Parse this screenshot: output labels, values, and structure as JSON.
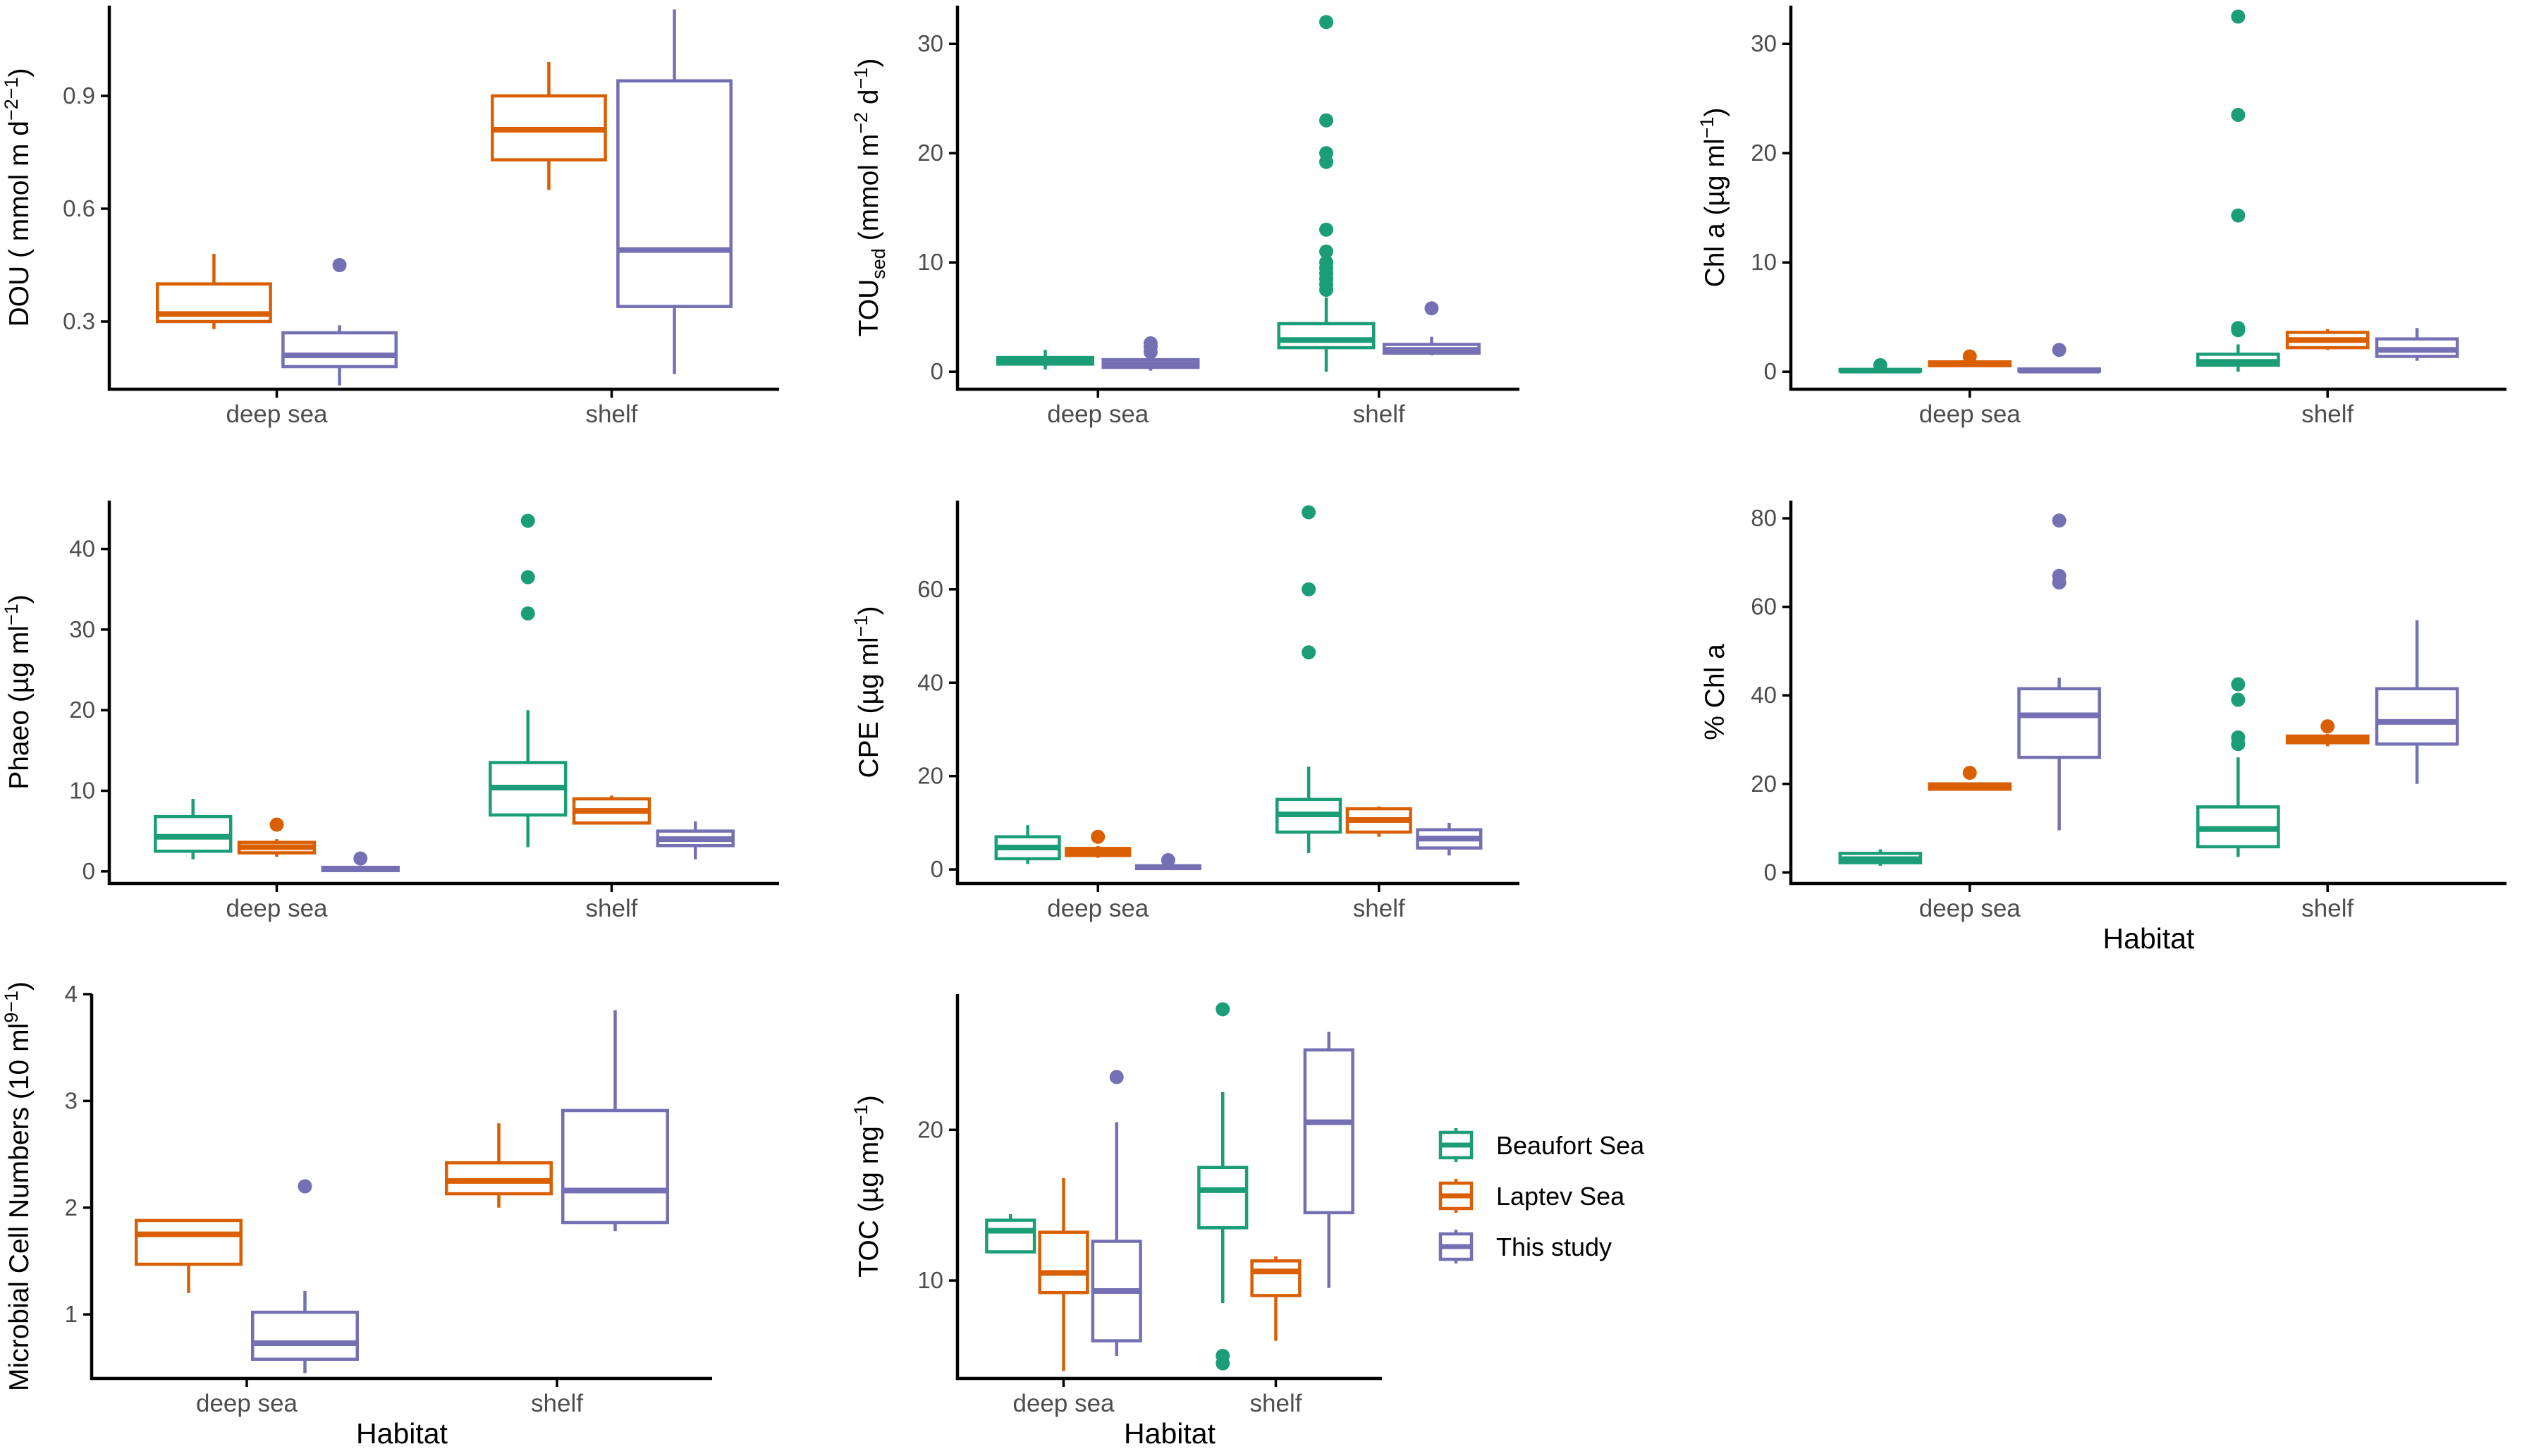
{
  "colors": {
    "Beaufort Sea": "#1b9e77",
    "Laptev Sea": "#d95f02",
    "This study": "#7570b3"
  },
  "legend": {
    "items": [
      "Beaufort Sea",
      "Laptev Sea",
      "This study"
    ]
  },
  "chart_data": [
    {
      "type": "boxplot",
      "title": "",
      "xlabel": "",
      "ylabel": {
        "main": "DOU ( mmol m",
        "sup1": "−2",
        "mid": " d",
        "sup2": "−1",
        "end": ")"
      },
      "categories": [
        "deep sea",
        "shelf"
      ],
      "ylim": [
        0.12,
        1.14
      ],
      "yticks": [
        {
          "v": 0.3,
          "label": "0.3"
        },
        {
          "v": 0.6,
          "label": "0.6"
        },
        {
          "v": 0.9,
          "label": "0.9"
        }
      ],
      "series": [
        {
          "name": "Laptev Sea",
          "values": [
            {
              "category": "deep sea",
              "min": 0.28,
              "q1": 0.3,
              "median": 0.32,
              "q3": 0.4,
              "max": 0.48,
              "outliers": []
            },
            {
              "category": "shelf",
              "min": 0.65,
              "q1": 0.73,
              "median": 0.81,
              "q3": 0.9,
              "max": 0.99,
              "outliers": []
            }
          ]
        },
        {
          "name": "This study",
          "values": [
            {
              "category": "deep sea",
              "min": 0.13,
              "q1": 0.18,
              "median": 0.21,
              "q3": 0.27,
              "max": 0.29,
              "outliers": [
                0.45
              ]
            },
            {
              "category": "shelf",
              "min": 0.16,
              "q1": 0.34,
              "median": 0.49,
              "q3": 0.94,
              "max": 1.13,
              "outliers": []
            }
          ]
        }
      ]
    },
    {
      "type": "boxplot",
      "title": "",
      "xlabel": "",
      "ylabel": {
        "main": "TOU",
        "sub": "sed",
        "mid": " (mmol m",
        "sup1": "−2",
        "mid2": " d",
        "sup2": "−1",
        "end": ")"
      },
      "categories": [
        "deep sea",
        "shelf"
      ],
      "ylim": [
        -1.6,
        33.5
      ],
      "yticks": [
        {
          "v": 0,
          "label": "0"
        },
        {
          "v": 10,
          "label": "10"
        },
        {
          "v": 20,
          "label": "20"
        },
        {
          "v": 30,
          "label": "30"
        }
      ],
      "series": [
        {
          "name": "Beaufort Sea",
          "values": [
            {
              "category": "deep sea",
              "min": 0.2,
              "q1": 0.7,
              "median": 1.0,
              "q3": 1.3,
              "max": 2.0,
              "outliers": []
            },
            {
              "category": "shelf",
              "min": 0.0,
              "q1": 2.2,
              "median": 2.9,
              "q3": 4.4,
              "max": 6.8,
              "outliers": [
                7.5,
                8.0,
                8.5,
                9.0,
                9.5,
                10.0,
                11.0,
                13.0,
                19.2,
                20.0,
                23.0,
                32.0
              ]
            }
          ]
        },
        {
          "name": "This study",
          "values": [
            {
              "category": "deep sea",
              "min": 0.1,
              "q1": 0.4,
              "median": 0.7,
              "q3": 1.1,
              "max": 1.4,
              "outliers": [
                1.8,
                2.3,
                2.6
              ]
            },
            {
              "category": "shelf",
              "min": 1.5,
              "q1": 1.7,
              "median": 2.0,
              "q3": 2.5,
              "max": 3.2,
              "outliers": [
                5.8
              ]
            }
          ]
        }
      ]
    },
    {
      "type": "boxplot",
      "title": "",
      "xlabel": "",
      "ylabel": {
        "main": "Chl a (µg ml",
        "sup1": "−1",
        "end": ")"
      },
      "categories": [
        "deep sea",
        "shelf"
      ],
      "ylim": [
        -1.6,
        33.5
      ],
      "yticks": [
        {
          "v": 0,
          "label": "0"
        },
        {
          "v": 10,
          "label": "10"
        },
        {
          "v": 20,
          "label": "20"
        },
        {
          "v": 30,
          "label": "30"
        }
      ],
      "series": [
        {
          "name": "Beaufort Sea",
          "values": [
            {
              "category": "deep sea",
              "min": 0.0,
              "q1": 0.05,
              "median": 0.1,
              "q3": 0.2,
              "max": 0.4,
              "outliers": [
                0.6
              ]
            },
            {
              "category": "shelf",
              "min": 0.0,
              "q1": 0.6,
              "median": 0.9,
              "q3": 1.6,
              "max": 2.5,
              "outliers": [
                3.8,
                4.0,
                14.3,
                23.5,
                32.5
              ]
            }
          ]
        },
        {
          "name": "Laptev Sea",
          "values": [
            {
              "category": "deep sea",
              "min": 0.5,
              "q1": 0.55,
              "median": 0.7,
              "q3": 0.9,
              "max": 1.1,
              "outliers": [
                1.4
              ]
            },
            {
              "category": "shelf",
              "min": 2.0,
              "q1": 2.2,
              "median": 2.9,
              "q3": 3.6,
              "max": 3.9,
              "outliers": []
            }
          ]
        },
        {
          "name": "This study",
          "values": [
            {
              "category": "deep sea",
              "min": 0.0,
              "q1": 0.05,
              "median": 0.1,
              "q3": 0.25,
              "max": 0.4,
              "outliers": [
                2.0
              ]
            },
            {
              "category": "shelf",
              "min": 1.0,
              "q1": 1.4,
              "median": 2.0,
              "q3": 3.0,
              "max": 4.0,
              "outliers": []
            }
          ]
        }
      ]
    },
    {
      "type": "boxplot",
      "title": "",
      "xlabel": "",
      "ylabel": {
        "main": "Phaeo (µg ml",
        "sup1": "−1",
        "end": ")"
      },
      "categories": [
        "deep sea",
        "shelf"
      ],
      "ylim": [
        -1.5,
        46
      ],
      "yticks": [
        {
          "v": 0,
          "label": "0"
        },
        {
          "v": 10,
          "label": "10"
        },
        {
          "v": 20,
          "label": "20"
        },
        {
          "v": 30,
          "label": "30"
        },
        {
          "v": 40,
          "label": "40"
        }
      ],
      "series": [
        {
          "name": "Beaufort Sea",
          "values": [
            {
              "category": "deep sea",
              "min": 1.5,
              "q1": 2.5,
              "median": 4.3,
              "q3": 6.8,
              "max": 9.0,
              "outliers": []
            },
            {
              "category": "shelf",
              "min": 3.0,
              "q1": 7.0,
              "median": 10.4,
              "q3": 13.5,
              "max": 20.0,
              "outliers": [
                32.0,
                36.5,
                43.5
              ]
            }
          ]
        },
        {
          "name": "Laptev Sea",
          "values": [
            {
              "category": "deep sea",
              "min": 1.8,
              "q1": 2.3,
              "median": 3.0,
              "q3": 3.6,
              "max": 4.0,
              "outliers": [
                5.8
              ]
            },
            {
              "category": "shelf",
              "min": 5.8,
              "q1": 6.0,
              "median": 7.5,
              "q3": 9.0,
              "max": 9.4,
              "outliers": []
            }
          ]
        },
        {
          "name": "This study",
          "values": [
            {
              "category": "deep sea",
              "min": 0.0,
              "q1": 0.1,
              "median": 0.3,
              "q3": 0.5,
              "max": 0.7,
              "outliers": [
                1.6
              ]
            },
            {
              "category": "shelf",
              "min": 1.5,
              "q1": 3.2,
              "median": 4.0,
              "q3": 5.0,
              "max": 6.2,
              "outliers": []
            }
          ]
        }
      ]
    },
    {
      "type": "boxplot",
      "title": "",
      "xlabel": "",
      "ylabel": {
        "main": "CPE (µg ml",
        "sup1": "−1",
        "end": ")"
      },
      "categories": [
        "deep sea",
        "shelf"
      ],
      "ylim": [
        -3,
        79
      ],
      "yticks": [
        {
          "v": 0,
          "label": "0"
        },
        {
          "v": 20,
          "label": "20"
        },
        {
          "v": 40,
          "label": "40"
        },
        {
          "v": 60,
          "label": "60"
        }
      ],
      "series": [
        {
          "name": "Beaufort Sea",
          "values": [
            {
              "category": "deep sea",
              "min": 1.2,
              "q1": 2.3,
              "median": 4.7,
              "q3": 7.0,
              "max": 9.5,
              "outliers": []
            },
            {
              "category": "shelf",
              "min": 3.5,
              "q1": 8.0,
              "median": 11.8,
              "q3": 15.0,
              "max": 22.0,
              "outliers": [
                46.5,
                60.0,
                76.5
              ]
            }
          ]
        },
        {
          "name": "Laptev Sea",
          "values": [
            {
              "category": "deep sea",
              "min": 2.5,
              "q1": 3.0,
              "median": 3.8,
              "q3": 4.5,
              "max": 5.0,
              "outliers": [
                7.0
              ]
            },
            {
              "category": "shelf",
              "min": 7.0,
              "q1": 8.0,
              "median": 10.6,
              "q3": 13.0,
              "max": 13.5,
              "outliers": []
            }
          ]
        },
        {
          "name": "This study",
          "values": [
            {
              "category": "deep sea",
              "min": 0.0,
              "q1": 0.2,
              "median": 0.5,
              "q3": 0.8,
              "max": 1.0,
              "outliers": [
                2.0
              ]
            },
            {
              "category": "shelf",
              "min": 3.0,
              "q1": 4.6,
              "median": 6.6,
              "q3": 8.5,
              "max": 10.0,
              "outliers": []
            }
          ]
        }
      ]
    },
    {
      "type": "boxplot",
      "title": "",
      "xlabel": "Habitat",
      "ylabel": {
        "main": "% Chl a"
      },
      "categories": [
        "deep sea",
        "shelf"
      ],
      "ylim": [
        -2.5,
        84
      ],
      "yticks": [
        {
          "v": 0,
          "label": "0"
        },
        {
          "v": 20,
          "label": "20"
        },
        {
          "v": 40,
          "label": "40"
        },
        {
          "v": 60,
          "label": "60"
        },
        {
          "v": 80,
          "label": "80"
        }
      ],
      "series": [
        {
          "name": "Beaufort Sea",
          "values": [
            {
              "category": "deep sea",
              "min": 1.5,
              "q1": 2.2,
              "median": 3.0,
              "q3": 4.3,
              "max": 5.2,
              "outliers": []
            },
            {
              "category": "shelf",
              "min": 3.5,
              "q1": 5.8,
              "median": 9.8,
              "q3": 14.8,
              "max": 26.0,
              "outliers": [
                29.0,
                30.5,
                39.0,
                42.5
              ]
            }
          ]
        },
        {
          "name": "Laptev Sea",
          "values": [
            {
              "category": "deep sea",
              "min": 18.5,
              "q1": 18.8,
              "median": 19.5,
              "q3": 20.0,
              "max": 20.3,
              "outliers": [
                22.5
              ]
            },
            {
              "category": "shelf",
              "min": 28.5,
              "q1": 29.3,
              "median": 30.0,
              "q3": 30.8,
              "max": 31.3,
              "outliers": [
                33.0
              ]
            }
          ]
        },
        {
          "name": "This study",
          "values": [
            {
              "category": "deep sea",
              "min": 9.5,
              "q1": 26.0,
              "median": 35.5,
              "q3": 41.5,
              "max": 44.0,
              "outliers": [
                65.5,
                67.0,
                79.5
              ]
            },
            {
              "category": "shelf",
              "min": 20.0,
              "q1": 29.0,
              "median": 34.0,
              "q3": 41.5,
              "max": 57.0,
              "outliers": []
            }
          ]
        }
      ]
    },
    {
      "type": "boxplot",
      "title": "",
      "xlabel": "Habitat",
      "ylabel": {
        "main": "Microbial Cell Numbers  (10",
        "sup1": "9",
        "mid": " ml",
        "sup2": "−1",
        "end": ")"
      },
      "categories": [
        "deep sea",
        "shelf"
      ],
      "ylim": [
        0.4,
        4.0
      ],
      "yticks": [
        {
          "v": 1,
          "label": "1"
        },
        {
          "v": 2,
          "label": "2"
        },
        {
          "v": 3,
          "label": "3"
        },
        {
          "v": 4,
          "label": "4"
        }
      ],
      "series": [
        {
          "name": "Laptev Sea",
          "values": [
            {
              "category": "deep sea",
              "min": 1.2,
              "q1": 1.47,
              "median": 1.75,
              "q3": 1.88,
              "max": 1.89,
              "outliers": []
            },
            {
              "category": "shelf",
              "min": 2.0,
              "q1": 2.13,
              "median": 2.25,
              "q3": 2.42,
              "max": 2.79,
              "outliers": []
            }
          ]
        },
        {
          "name": "This study",
          "values": [
            {
              "category": "deep sea",
              "min": 0.45,
              "q1": 0.58,
              "median": 0.73,
              "q3": 1.02,
              "max": 1.22,
              "outliers": [
                2.2
              ]
            },
            {
              "category": "shelf",
              "min": 1.78,
              "q1": 1.86,
              "median": 2.16,
              "q3": 2.91,
              "max": 3.85,
              "outliers": []
            }
          ]
        }
      ]
    },
    {
      "type": "boxplot",
      "title": "",
      "xlabel": "Habitat",
      "ylabel": {
        "main": "TOC (µg mg",
        "sup1": "−1",
        "end": ")"
      },
      "categories": [
        "deep sea",
        "shelf"
      ],
      "ylim": [
        3.5,
        29
      ],
      "yticks": [
        {
          "v": 10,
          "label": "10"
        },
        {
          "v": 20,
          "label": "20"
        }
      ],
      "series": [
        {
          "name": "Beaufort Sea",
          "values": [
            {
              "category": "deep sea",
              "min": 11.9,
              "q1": 11.9,
              "median": 13.3,
              "q3": 14.0,
              "max": 14.4,
              "outliers": []
            },
            {
              "category": "shelf",
              "min": 8.5,
              "q1": 13.5,
              "median": 16.0,
              "q3": 17.5,
              "max": 22.5,
              "outliers": [
                4.5,
                5.0,
                28.0
              ]
            }
          ]
        },
        {
          "name": "Laptev Sea",
          "values": [
            {
              "category": "deep sea",
              "min": 4.0,
              "q1": 9.2,
              "median": 10.5,
              "q3": 13.2,
              "max": 16.8,
              "outliers": []
            },
            {
              "category": "shelf",
              "min": 6.0,
              "q1": 9.0,
              "median": 10.6,
              "q3": 11.3,
              "max": 11.6,
              "outliers": []
            }
          ]
        },
        {
          "name": "This study",
          "values": [
            {
              "category": "deep sea",
              "min": 5.0,
              "q1": 6.0,
              "median": 9.3,
              "q3": 12.6,
              "max": 20.5,
              "outliers": [
                23.5
              ]
            },
            {
              "category": "shelf",
              "min": 9.5,
              "q1": 14.5,
              "median": 20.5,
              "q3": 25.3,
              "max": 26.5,
              "outliers": []
            }
          ]
        }
      ]
    }
  ]
}
